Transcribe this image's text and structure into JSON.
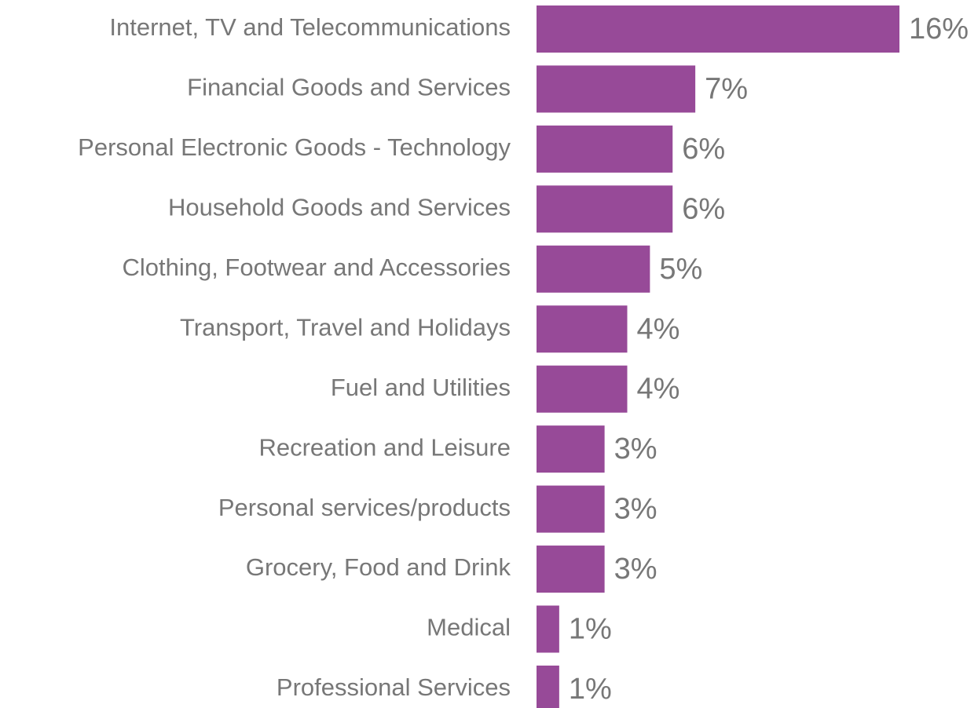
{
  "chart_data": {
    "type": "barh",
    "categories": [
      "Internet, TV and Telecommunications",
      "Financial Goods and Services",
      "Personal Electronic Goods - Technology",
      "Household Goods and Services",
      "Clothing, Footwear and Accessories",
      "Transport, Travel and Holidays",
      "Fuel and Utilities",
      "Recreation and Leisure",
      "Personal services/products",
      "Grocery, Food and Drink",
      "Medical",
      "Professional Services"
    ],
    "values": [
      16,
      7,
      6,
      6,
      5,
      4,
      4,
      3,
      3,
      3,
      1,
      1
    ],
    "value_labels": [
      "16%",
      "7%",
      "6%",
      "6%",
      "5%",
      "4%",
      "4%",
      "3%",
      "3%",
      "3%",
      "1%",
      "1%"
    ],
    "color": "#974a98"
  }
}
